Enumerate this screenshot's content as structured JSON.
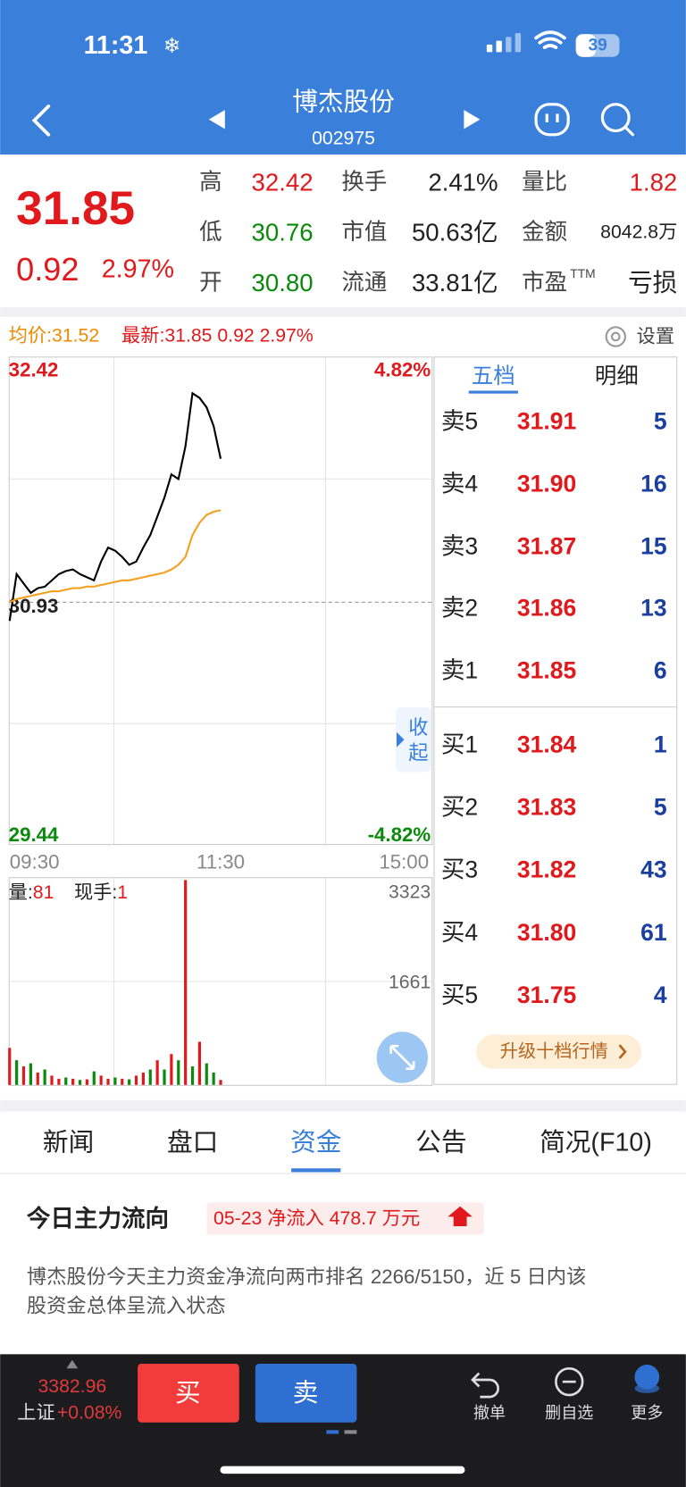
{
  "status_bar": {
    "time": "11:31",
    "battery": "39"
  },
  "header": {
    "title": "博杰股份",
    "code": "002975"
  },
  "quote": {
    "price": "31.85",
    "change": "0.92",
    "change_pct": "2.97%",
    "stats": [
      {
        "label": "高",
        "value": "32.42",
        "color": "#e0191c"
      },
      {
        "label": "换手",
        "value": "2.41%",
        "color": "#222222"
      },
      {
        "label": "量比",
        "value": "1.82",
        "color": "#e0191c"
      },
      {
        "label": "低",
        "value": "30.76",
        "color": "#0a8a0a"
      },
      {
        "label": "市值",
        "value": "50.63亿",
        "color": "#222222"
      },
      {
        "label": "金额",
        "value": "8042.8万",
        "color": "#222222"
      },
      {
        "label": "开",
        "value": "30.80",
        "color": "#0a8a0a"
      },
      {
        "label": "流通",
        "value": "33.81亿",
        "color": "#222222"
      },
      {
        "label": "市盈",
        "sup": "TTM",
        "value": "亏损",
        "color": "#222222"
      }
    ]
  },
  "chart_info": {
    "average": "均价:31.52",
    "latest": "最新:31.85 0.92 2.97%",
    "settings": "设置"
  },
  "chart_data": [
    {
      "type": "line",
      "x": [
        0,
        4,
        8,
        12,
        16,
        20,
        24,
        28,
        32,
        36,
        40,
        44,
        48,
        52,
        56,
        60,
        64,
        68,
        72,
        76,
        80,
        84,
        88,
        92,
        96,
        100,
        104,
        108,
        112,
        116,
        120
      ],
      "xlim": [
        0,
        240
      ],
      "xticks": [
        {
          "value": 0,
          "label": "09:30"
        },
        {
          "value": 120,
          "label": "11:30"
        },
        {
          "value": 240,
          "label": "15:00"
        }
      ],
      "ylim": [
        29.44,
        32.42
      ],
      "yticks": [
        29.44,
        30.93,
        32.42
      ],
      "ytick_colors": [
        "#0a8a0a",
        "#222222",
        "#e0191c"
      ],
      "y2lim": [
        -4.82,
        4.82
      ],
      "y2ticks": [
        {
          "value": -4.82,
          "label": "-4.82%"
        },
        {
          "value": 4.82,
          "label": "4.82%"
        }
      ],
      "y2tick_colors": [
        "#0a8a0a",
        "#e0191c"
      ],
      "series": [
        {
          "color": "#000000",
          "values": [
            30.81,
            31.11,
            31.05,
            30.99,
            31.02,
            31.03,
            31.07,
            31.11,
            31.13,
            31.14,
            31.11,
            31.09,
            31.07,
            31.19,
            31.28,
            31.26,
            31.22,
            31.17,
            31.19,
            31.28,
            31.36,
            31.48,
            31.6,
            31.75,
            31.72,
            31.93,
            32.27,
            32.24,
            32.18,
            32.06,
            31.85
          ]
        },
        {
          "color": "#f5a021",
          "values": [
            30.93,
            30.95,
            30.96,
            30.97,
            30.98,
            30.99,
            31.0,
            31.0,
            31.01,
            31.02,
            31.02,
            31.03,
            31.03,
            31.04,
            31.05,
            31.06,
            31.07,
            31.07,
            31.08,
            31.09,
            31.1,
            31.11,
            31.12,
            31.14,
            31.17,
            31.22,
            31.36,
            31.44,
            31.49,
            31.51,
            31.52
          ]
        }
      ]
    },
    {
      "type": "bar",
      "x": [
        0,
        4,
        8,
        12,
        16,
        20,
        24,
        28,
        32,
        36,
        40,
        44,
        48,
        52,
        56,
        60,
        64,
        68,
        72,
        76,
        80,
        84,
        88,
        92,
        96,
        100,
        104,
        108,
        112,
        116,
        120
      ],
      "xlim": [
        0,
        240
      ],
      "values": [
        600,
        400,
        300,
        350,
        200,
        250,
        150,
        100,
        120,
        100,
        80,
        90,
        220,
        150,
        100,
        120,
        100,
        90,
        150,
        200,
        250,
        400,
        250,
        500,
        400,
        3323,
        300,
        700,
        350,
        200,
        81
      ],
      "colors": [
        "#e0191c",
        "#0a8a0a",
        "#e0191c",
        "#0a8a0a",
        "#e0191c",
        "#0a8a0a",
        "#e0191c",
        "#e0191c",
        "#0a8a0a",
        "#e0191c",
        "#0a8a0a",
        "#e0191c",
        "#0a8a0a",
        "#e0191c",
        "#e0191c",
        "#0a8a0a",
        "#e0191c",
        "#0a8a0a",
        "#e0191c",
        "#e0191c",
        "#0a8a0a",
        "#e0191c",
        "#0a8a0a",
        "#e0191c",
        "#0a8a0a",
        "#e0191c",
        "#0a8a0a",
        "#e0191c",
        "#0a8a0a",
        "#0a8a0a",
        "#e0191c"
      ],
      "ylim": [
        0,
        3323
      ],
      "yticks": [
        1661,
        3323
      ]
    }
  ],
  "volume_info": {
    "volume_label": "量:",
    "volume": "81",
    "hand_label": "现手:",
    "hand": "1"
  },
  "collapse": [
    "收",
    "起"
  ],
  "order_book": {
    "tabs": [
      "五档",
      "明细"
    ],
    "asks": [
      {
        "label": "卖5",
        "price": "31.91",
        "volume": "5"
      },
      {
        "label": "卖4",
        "price": "31.90",
        "volume": "16"
      },
      {
        "label": "卖3",
        "price": "31.87",
        "volume": "15"
      },
      {
        "label": "卖2",
        "price": "31.86",
        "volume": "13"
      },
      {
        "label": "卖1",
        "price": "31.85",
        "volume": "6"
      }
    ],
    "bids": [
      {
        "label": "买1",
        "price": "31.84",
        "volume": "1"
      },
      {
        "label": "买2",
        "price": "31.83",
        "volume": "5"
      },
      {
        "label": "买3",
        "price": "31.82",
        "volume": "43"
      },
      {
        "label": "买4",
        "price": "31.80",
        "volume": "61"
      },
      {
        "label": "买5",
        "price": "31.75",
        "volume": "4"
      }
    ],
    "upgrade": "升级十档行情"
  },
  "tabs": [
    "新闻",
    "盘口",
    "资金",
    "公告",
    "简况(F10)"
  ],
  "fund_flow": {
    "title": "今日主力流向",
    "badge": "05-23 净流入 478.7 万元",
    "lines": [
      "博杰股份今天主力资金净流向两市排名 2266/5150，近 5 日内该",
      "股资金总体呈流入状态"
    ]
  },
  "bottom_bar": {
    "index_value": "3382.96",
    "index_name": "上证",
    "index_change": "+0.08%",
    "buy": "买",
    "sell": "卖",
    "tools": [
      "撤单",
      "删自选",
      "更多"
    ]
  }
}
